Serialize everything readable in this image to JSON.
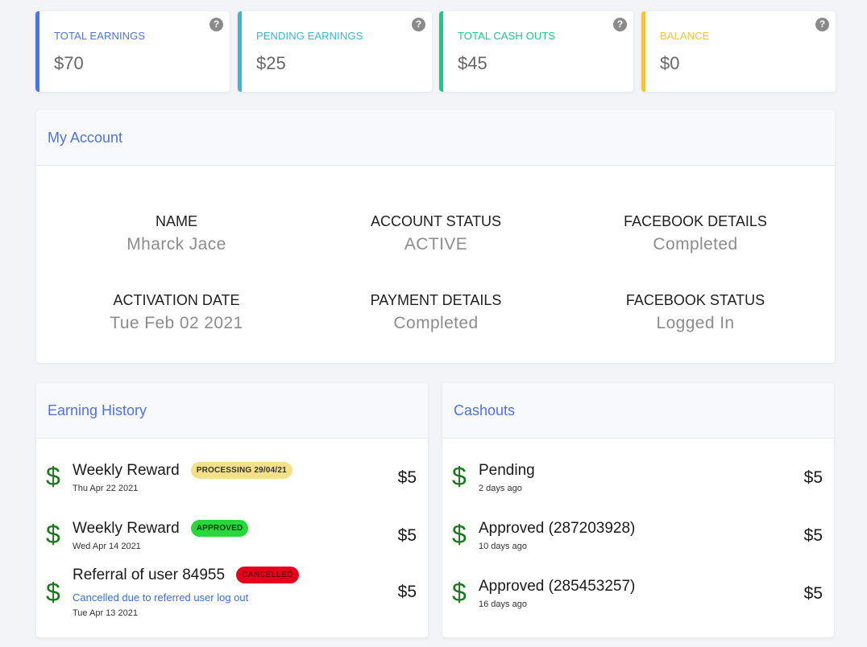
{
  "colors": {
    "earnings": "#4e73df",
    "pending": "#36b9cc",
    "cashouts": "#1cc88a",
    "balance": "#f6c23e",
    "panel_title": "#4e73df",
    "dollar": "#1a7a1a"
  },
  "stats": [
    {
      "label": "TOTAL EARNINGS",
      "value": "$70",
      "help": "?",
      "color": "#4e73df"
    },
    {
      "label": "PENDING EARNINGS",
      "value": "$25",
      "help": "?",
      "color": "#36b9cc"
    },
    {
      "label": "TOTAL CASH OUTS",
      "value": "$45",
      "help": "?",
      "color": "#1cc88a"
    },
    {
      "label": "BALANCE",
      "value": "$0",
      "help": "?",
      "color": "#f6c23e"
    }
  ],
  "account": {
    "title": "My Account",
    "fields": [
      {
        "label": "NAME",
        "value": "Mharck Jace"
      },
      {
        "label": "ACCOUNT STATUS",
        "value": "ACTIVE"
      },
      {
        "label": "FACEBOOK DETAILS",
        "value": "Completed"
      },
      {
        "label": "ACTIVATION DATE",
        "value": "Tue Feb 02 2021"
      },
      {
        "label": "PAYMENT DETAILS",
        "value": "Completed"
      },
      {
        "label": "FACEBOOK STATUS",
        "value": "Logged In"
      }
    ]
  },
  "earning_history": {
    "title": "Earning History",
    "items": [
      {
        "icon": "$",
        "title": "Weekly Reward",
        "badge": "PROCESSING 29/04/21",
        "badge_type": "processing",
        "note": "",
        "date": "Thu Apr 22 2021",
        "amount": "$5"
      },
      {
        "icon": "$",
        "title": "Weekly Reward",
        "badge": "APPROVED",
        "badge_type": "approved",
        "note": "",
        "date": "Wed Apr 14 2021",
        "amount": "$5"
      },
      {
        "icon": "$",
        "title": "Referral of user 84955",
        "badge": "CANCELLED",
        "badge_type": "cancelled",
        "note": "Cancelled due to referred user log out",
        "date": "Tue Apr 13 2021",
        "amount": "$5"
      }
    ]
  },
  "cashouts": {
    "title": "Cashouts",
    "items": [
      {
        "icon": "$",
        "title": "Pending",
        "date": "2 days ago",
        "amount": "$5"
      },
      {
        "icon": "$",
        "title": "Approved (287203928)",
        "date": "10 days ago",
        "amount": "$5"
      },
      {
        "icon": "$",
        "title": "Approved (285453257)",
        "date": "16 days ago",
        "amount": "$5"
      }
    ]
  }
}
